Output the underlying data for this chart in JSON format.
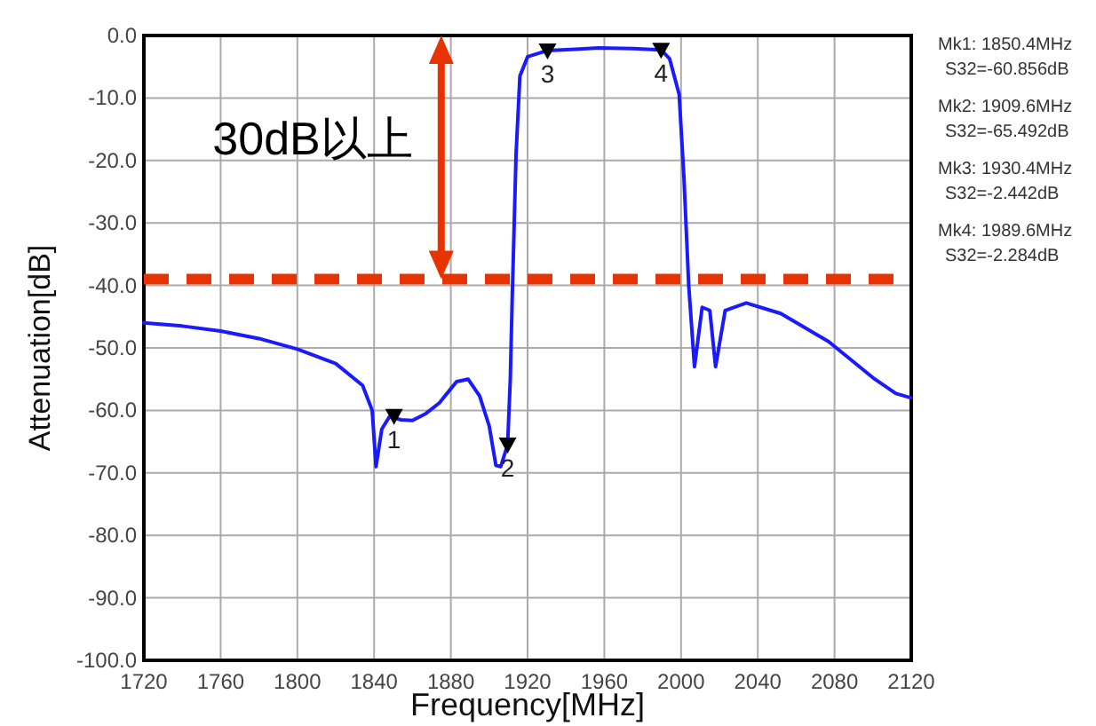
{
  "chart_data": {
    "type": "line",
    "xlabel": "Frequency[MHz]",
    "ylabel": "Attenuation[dB]",
    "xlim": [
      1720,
      2120
    ],
    "xticks": [
      1720,
      1760,
      1800,
      1840,
      1880,
      1920,
      1960,
      2000,
      2040,
      2080,
      2120
    ],
    "ylim": [
      -100,
      0
    ],
    "yticks": [
      {
        "value": 0,
        "label": "0.0"
      },
      {
        "value": -10,
        "label": "-10.0"
      },
      {
        "value": -20,
        "label": "-20.0"
      },
      {
        "value": -30,
        "label": "-30.0"
      },
      {
        "value": -40,
        "label": "-40.0"
      },
      {
        "value": -50,
        "label": "-50.0"
      },
      {
        "value": -60,
        "label": "-60.0"
      },
      {
        "value": -70,
        "label": "-70.0"
      },
      {
        "value": -80,
        "label": "-80.0"
      },
      {
        "value": -90,
        "label": "-90.0"
      },
      {
        "value": -100,
        "label": "-100.0"
      }
    ],
    "grid": true,
    "series": [
      {
        "color": "#1a1aff",
        "x": [
          1720,
          1740,
          1760,
          1780,
          1800,
          1820,
          1834,
          1839,
          1841,
          1844,
          1848,
          1854,
          1860,
          1867,
          1874,
          1883,
          1889,
          1895,
          1900,
          1903.5,
          1906,
          1909.6,
          1911,
          1912,
          1914,
          1916,
          1920,
          1930.4,
          1945,
          1957,
          1975,
          1989.6,
          1994,
          1999,
          2001.5,
          2004,
          2007,
          2011,
          2015,
          2018,
          2023,
          2034,
          2052,
          2077,
          2101,
          2112,
          2120
        ],
        "values": [
          -46,
          -46.5,
          -47.3,
          -48.5,
          -50.2,
          -52.5,
          -56,
          -60,
          -69,
          -63,
          -61,
          -61.5,
          -61.6,
          -60.5,
          -58.8,
          -55.4,
          -55,
          -57.7,
          -62.5,
          -68.8,
          -69,
          -65.5,
          -55,
          -42,
          -19,
          -6.5,
          -3.4,
          -2.4,
          -2.2,
          -2,
          -2.1,
          -2.3,
          -3.7,
          -9.4,
          -22.7,
          -40,
          -53,
          -43.5,
          -44,
          -53,
          -44,
          -42.8,
          -44.5,
          -49,
          -55,
          -57.3,
          -58
        ]
      },
      {
        "type": "scatter",
        "marker": "triangle",
        "color": "#000000",
        "x": [
          1850.4,
          1909.6,
          1930.4,
          1989.6
        ],
        "values": [
          -60.9,
          -65.5,
          -2.4,
          -2.3
        ]
      }
    ],
    "ref_lines": [
      {
        "axis": "y",
        "value": -39,
        "color": "#e63300",
        "line_style": "dashed"
      }
    ],
    "annotations": [
      {
        "text": "30dB以上",
        "x": 1875,
        "y": -39
      },
      {
        "text": "1",
        "x": 1850.4,
        "y": -60.9
      },
      {
        "text": "2",
        "x": 1909.6,
        "y": -65.5
      },
      {
        "text": "3",
        "x": 1930.4,
        "y": -2.4
      },
      {
        "text": "4",
        "x": 1989.6,
        "y": -2.3
      },
      "Mk1: 1850.4MHz",
      "S32=-60.856dB",
      "Mk2: 1909.6MHz",
      "S32=-65.492dB",
      "Mk3: 1930.4MHz",
      "S32=-2.442dB",
      "Mk4: 1989.6MHz",
      "S32=-2.284dB"
    ]
  }
}
